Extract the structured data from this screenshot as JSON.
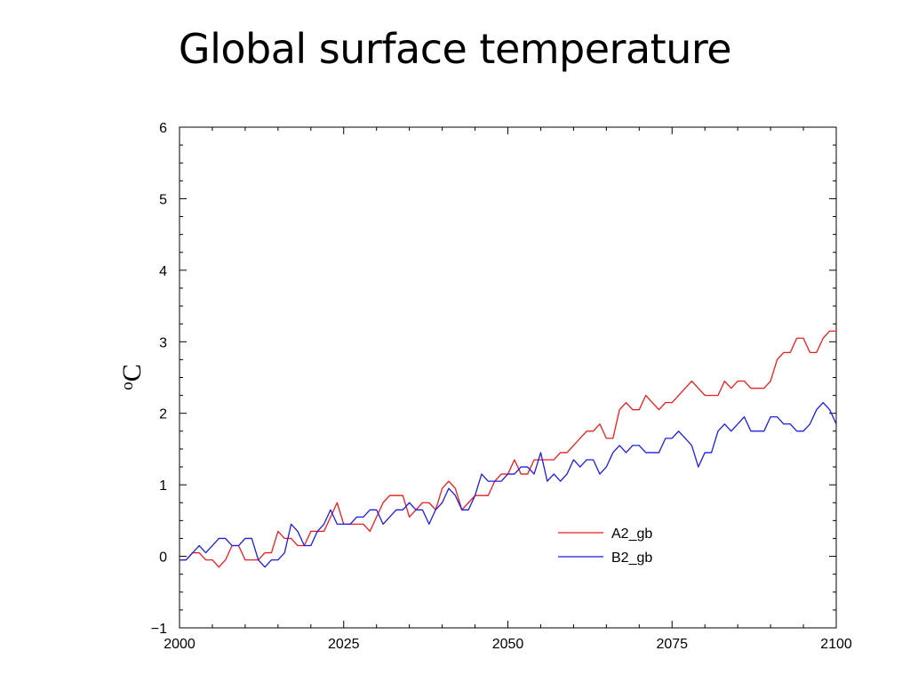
{
  "slide": {
    "title": "Global surface temperature"
  },
  "chart_data": {
    "type": "line",
    "title": "",
    "xlabel": "",
    "ylabel": "oC",
    "ylabel_parts": {
      "superscript": "o",
      "main": "C"
    },
    "xlim": [
      2000,
      2100
    ],
    "ylim": [
      -1,
      6
    ],
    "xticks": [
      2000,
      2025,
      2050,
      2075,
      2100
    ],
    "xtick_labels": [
      "2000",
      "2025",
      "2050",
      "2075",
      "2100"
    ],
    "yticks": [
      -1,
      0,
      1,
      2,
      3,
      4,
      5,
      6
    ],
    "ytick_labels": [
      "−1",
      "0",
      "1",
      "2",
      "3",
      "4",
      "5",
      "6"
    ],
    "grid": false,
    "legend_position": "lower-right",
    "x": [
      2000,
      2001,
      2002,
      2003,
      2004,
      2005,
      2006,
      2007,
      2008,
      2009,
      2010,
      2011,
      2012,
      2013,
      2014,
      2015,
      2016,
      2017,
      2018,
      2019,
      2020,
      2021,
      2022,
      2023,
      2024,
      2025,
      2026,
      2027,
      2028,
      2029,
      2030,
      2031,
      2032,
      2033,
      2034,
      2035,
      2036,
      2037,
      2038,
      2039,
      2040,
      2041,
      2042,
      2043,
      2044,
      2045,
      2046,
      2047,
      2048,
      2049,
      2050,
      2051,
      2052,
      2053,
      2054,
      2055,
      2056,
      2057,
      2058,
      2059,
      2060,
      2061,
      2062,
      2063,
      2064,
      2065,
      2066,
      2067,
      2068,
      2069,
      2070,
      2071,
      2072,
      2073,
      2074,
      2075,
      2076,
      2077,
      2078,
      2079,
      2080,
      2081,
      2082,
      2083,
      2084,
      2085,
      2086,
      2087,
      2088,
      2089,
      2090,
      2091,
      2092,
      2093,
      2094,
      2095,
      2096,
      2097,
      2098,
      2099,
      2100
    ],
    "series": [
      {
        "name": "A2_gb",
        "color": "#ee1c1c",
        "values": [
          -0.05,
          -0.05,
          0.05,
          0.05,
          -0.05,
          -0.05,
          -0.15,
          -0.05,
          0.15,
          0.15,
          -0.05,
          -0.05,
          -0.05,
          0.05,
          0.05,
          0.35,
          0.25,
          0.25,
          0.15,
          0.15,
          0.35,
          0.35,
          0.35,
          0.55,
          0.75,
          0.45,
          0.45,
          0.45,
          0.45,
          0.35,
          0.55,
          0.75,
          0.85,
          0.85,
          0.85,
          0.55,
          0.65,
          0.75,
          0.75,
          0.65,
          0.95,
          1.05,
          0.95,
          0.65,
          0.75,
          0.85,
          0.85,
          0.85,
          1.05,
          1.15,
          1.15,
          1.35,
          1.15,
          1.15,
          1.35,
          1.35,
          1.35,
          1.35,
          1.45,
          1.45,
          1.55,
          1.65,
          1.75,
          1.75,
          1.85,
          1.65,
          1.65,
          2.05,
          2.15,
          2.05,
          2.05,
          2.25,
          2.15,
          2.05,
          2.15,
          2.15,
          2.25,
          2.35,
          2.45,
          2.35,
          2.25,
          2.25,
          2.25,
          2.45,
          2.35,
          2.45,
          2.45,
          2.35,
          2.35,
          2.35,
          2.45,
          2.75,
          2.85,
          2.85,
          3.05,
          3.05,
          2.85,
          2.85,
          3.05,
          3.15,
          3.15
        ]
      },
      {
        "name": "B2_gb",
        "color": "#1c1ce8",
        "values": [
          -0.05,
          -0.05,
          0.05,
          0.15,
          0.05,
          0.15,
          0.25,
          0.25,
          0.15,
          0.15,
          0.25,
          0.25,
          -0.05,
          -0.15,
          -0.05,
          -0.05,
          0.05,
          0.45,
          0.35,
          0.15,
          0.15,
          0.35,
          0.45,
          0.65,
          0.45,
          0.45,
          0.45,
          0.55,
          0.55,
          0.65,
          0.65,
          0.45,
          0.55,
          0.65,
          0.65,
          0.75,
          0.65,
          0.65,
          0.45,
          0.65,
          0.75,
          0.95,
          0.85,
          0.65,
          0.65,
          0.85,
          1.15,
          1.05,
          1.05,
          1.05,
          1.15,
          1.15,
          1.25,
          1.25,
          1.15,
          1.45,
          1.05,
          1.15,
          1.05,
          1.15,
          1.35,
          1.25,
          1.35,
          1.35,
          1.15,
          1.25,
          1.45,
          1.55,
          1.45,
          1.55,
          1.55,
          1.45,
          1.45,
          1.45,
          1.65,
          1.65,
          1.75,
          1.65,
          1.55,
          1.25,
          1.45,
          1.45,
          1.75,
          1.85,
          1.75,
          1.85,
          1.95,
          1.75,
          1.75,
          1.75,
          1.95,
          1.95,
          1.85,
          1.85,
          1.75,
          1.75,
          1.85,
          2.05,
          2.15,
          2.05,
          1.85
        ]
      }
    ]
  }
}
